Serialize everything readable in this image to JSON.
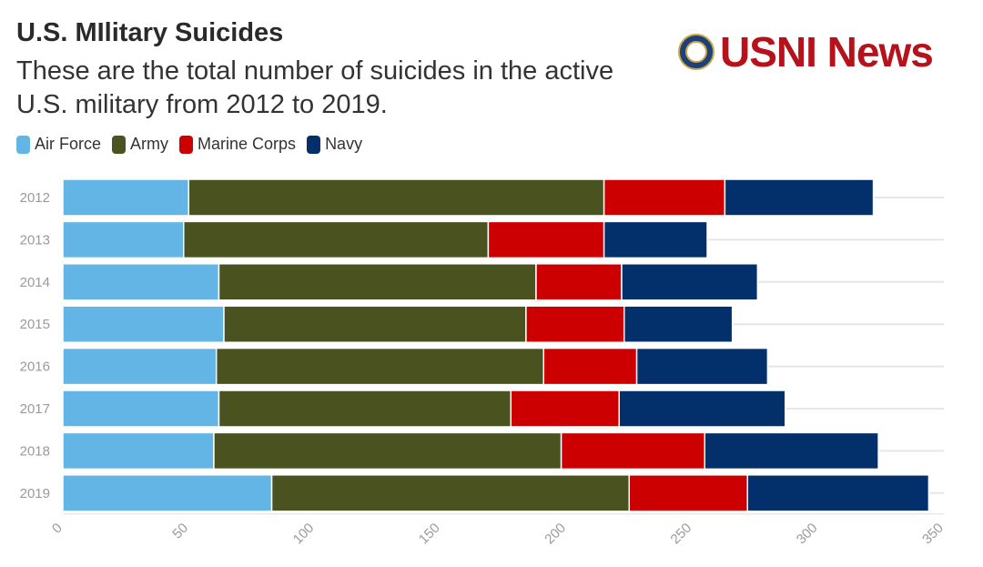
{
  "header": {
    "title": "U.S. MIlitary Suicides",
    "subtitle": "These are the total number of suicides in the active U.S. military from 2012 to 2019.",
    "logo_text": "USNI News"
  },
  "chart_data": {
    "type": "bar",
    "orientation": "horizontal",
    "stacked": true,
    "title": "U.S. MIlitary Suicides",
    "categories": [
      "2012",
      "2013",
      "2014",
      "2015",
      "2016",
      "2017",
      "2018",
      "2019"
    ],
    "series": [
      {
        "name": "Air Force",
        "color": "#63b5e5",
        "values": [
          50,
          48,
          62,
          64,
          61,
          62,
          60,
          83
        ]
      },
      {
        "name": "Army",
        "color": "#4a5320",
        "values": [
          165,
          121,
          126,
          120,
          130,
          116,
          138,
          142
        ]
      },
      {
        "name": "Marine Corps",
        "color": "#cc0000",
        "values": [
          48,
          46,
          34,
          39,
          37,
          43,
          57,
          47
        ]
      },
      {
        "name": "Navy",
        "color": "#03306b",
        "values": [
          59,
          41,
          54,
          43,
          52,
          66,
          69,
          72
        ]
      }
    ],
    "xlim": [
      0,
      350
    ],
    "xticks": [
      0,
      50,
      100,
      150,
      200,
      250,
      300,
      350
    ],
    "xlabel": "",
    "ylabel": "",
    "grid": true,
    "legend": "top-left"
  }
}
